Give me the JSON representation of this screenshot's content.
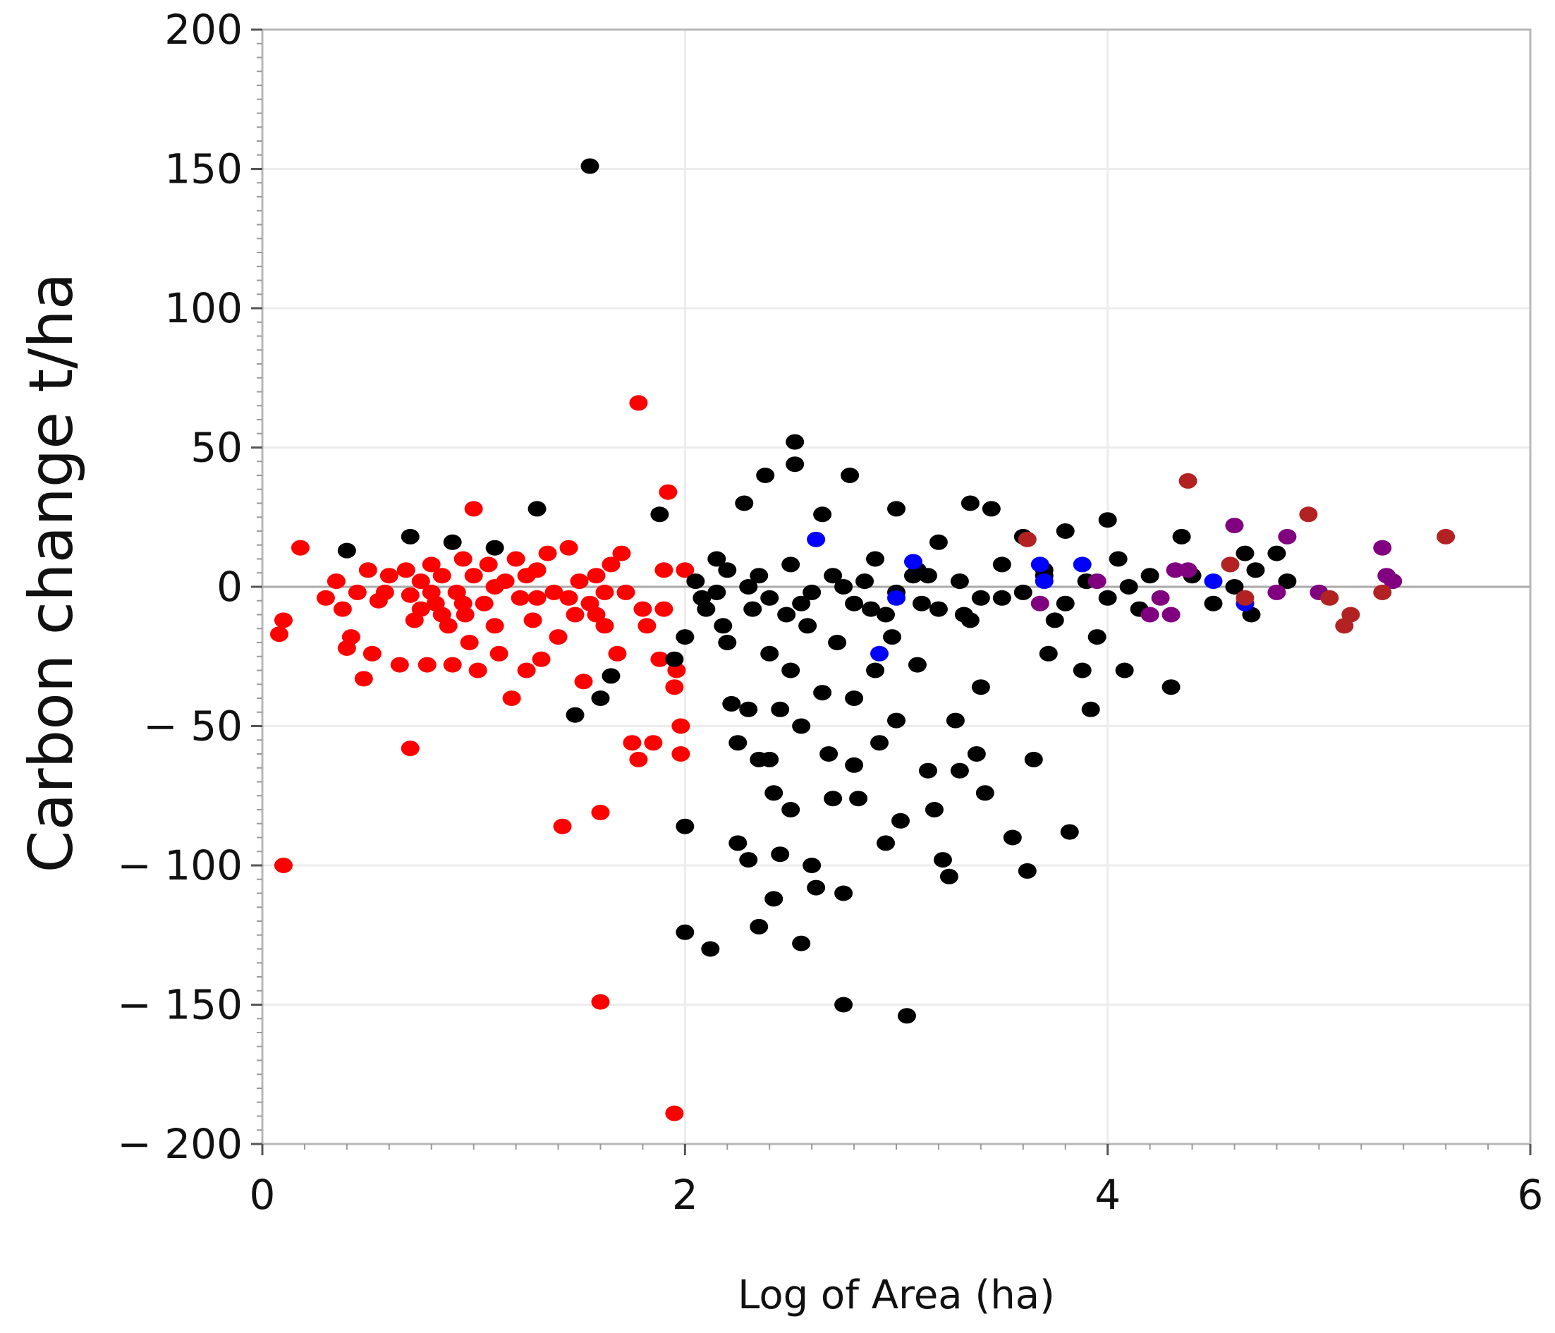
{
  "chart_data": {
    "type": "scatter",
    "title": "",
    "xlabel": "Log of Area (ha)",
    "ylabel": "Carbon change t/ha",
    "xlim": [
      0,
      6
    ],
    "ylim": [
      -200,
      200
    ],
    "grid": true,
    "x_ticks": [
      0,
      2,
      4,
      6
    ],
    "x_tick_labels": [
      "0",
      "2",
      "4",
      "6"
    ],
    "y_ticks": [
      200,
      150,
      100,
      50,
      0,
      -50,
      -100,
      -150,
      -200
    ],
    "y_tick_labels": [
      "200",
      "150",
      "100",
      "50",
      "0",
      "− 50",
      "− 100",
      "− 150",
      "− 200"
    ],
    "reference_line_y": 0,
    "series": [
      {
        "color": "#ff0000",
        "points": [
          [
            0.1,
            -100
          ],
          [
            0.08,
            -17
          ],
          [
            0.1,
            -12
          ],
          [
            0.18,
            14
          ],
          [
            0.3,
            -4
          ],
          [
            0.35,
            2
          ],
          [
            0.38,
            -8
          ],
          [
            0.4,
            -22
          ],
          [
            0.42,
            -18
          ],
          [
            0.45,
            -2
          ],
          [
            0.48,
            -33
          ],
          [
            0.5,
            6
          ],
          [
            0.52,
            -24
          ],
          [
            0.55,
            -5
          ],
          [
            0.58,
            -2
          ],
          [
            0.6,
            4
          ],
          [
            0.65,
            -28
          ],
          [
            0.68,
            6
          ],
          [
            0.7,
            -58
          ],
          [
            0.7,
            -3
          ],
          [
            0.72,
            -12
          ],
          [
            0.75,
            2
          ],
          [
            0.78,
            -28
          ],
          [
            0.8,
            8
          ],
          [
            0.82,
            -6
          ],
          [
            0.85,
            4
          ],
          [
            0.88,
            -14
          ],
          [
            0.9,
            -28
          ],
          [
            0.92,
            -2
          ],
          [
            0.95,
            10
          ],
          [
            0.96,
            -10
          ],
          [
            0.98,
            -20
          ],
          [
            1.0,
            28
          ],
          [
            1.0,
            4
          ],
          [
            1.02,
            -30
          ],
          [
            1.05,
            -6
          ],
          [
            1.07,
            8
          ],
          [
            1.1,
            -14
          ],
          [
            1.12,
            -24
          ],
          [
            1.15,
            2
          ],
          [
            1.18,
            -40
          ],
          [
            1.2,
            10
          ],
          [
            1.22,
            -4
          ],
          [
            1.25,
            -30
          ],
          [
            1.28,
            -12
          ],
          [
            1.3,
            6
          ],
          [
            1.32,
            -26
          ],
          [
            1.35,
            12
          ],
          [
            1.38,
            -2
          ],
          [
            1.4,
            -18
          ],
          [
            1.42,
            -86
          ],
          [
            1.45,
            14
          ],
          [
            1.48,
            -10
          ],
          [
            1.5,
            2
          ],
          [
            1.52,
            -34
          ],
          [
            1.55,
            -6
          ],
          [
            1.58,
            4
          ],
          [
            1.6,
            -81
          ],
          [
            1.6,
            -149
          ],
          [
            1.62,
            -14
          ],
          [
            1.65,
            8
          ],
          [
            1.68,
            -24
          ],
          [
            1.7,
            12
          ],
          [
            1.72,
            -2
          ],
          [
            1.75,
            -56
          ],
          [
            1.78,
            -62
          ],
          [
            1.78,
            66
          ],
          [
            1.8,
            -8
          ],
          [
            1.82,
            -14
          ],
          [
            1.85,
            -56
          ],
          [
            1.88,
            -26
          ],
          [
            1.9,
            6
          ],
          [
            1.9,
            -8
          ],
          [
            1.92,
            34
          ],
          [
            1.95,
            -36
          ],
          [
            1.95,
            -189
          ],
          [
            1.96,
            -30
          ],
          [
            1.98,
            -50
          ],
          [
            1.98,
            -60
          ],
          [
            2.0,
            6
          ],
          [
            1.62,
            -2
          ],
          [
            1.58,
            -10
          ],
          [
            1.3,
            -4
          ],
          [
            1.1,
            0
          ],
          [
            0.95,
            -6
          ],
          [
            0.85,
            -10
          ],
          [
            0.8,
            -2
          ],
          [
            0.75,
            -8
          ],
          [
            1.45,
            -4
          ],
          [
            1.25,
            4
          ]
        ]
      },
      {
        "color": "#000000",
        "points": [
          [
            0.4,
            13
          ],
          [
            0.7,
            18
          ],
          [
            0.9,
            16
          ],
          [
            1.1,
            14
          ],
          [
            1.3,
            28
          ],
          [
            1.48,
            -46
          ],
          [
            1.55,
            151
          ],
          [
            1.6,
            -40
          ],
          [
            1.65,
            -32
          ],
          [
            1.88,
            26
          ],
          [
            1.95,
            -26
          ],
          [
            2.0,
            -18
          ],
          [
            2.0,
            -86
          ],
          [
            2.0,
            -124
          ],
          [
            2.05,
            2
          ],
          [
            2.08,
            -4
          ],
          [
            2.1,
            -8
          ],
          [
            2.12,
            -130
          ],
          [
            2.15,
            10
          ],
          [
            2.18,
            -14
          ],
          [
            2.2,
            -20
          ],
          [
            2.22,
            -42
          ],
          [
            2.25,
            -56
          ],
          [
            2.25,
            -92
          ],
          [
            2.28,
            30
          ],
          [
            2.3,
            -44
          ],
          [
            2.3,
            -98
          ],
          [
            2.32,
            -8
          ],
          [
            2.35,
            -62
          ],
          [
            2.35,
            -122
          ],
          [
            2.38,
            40
          ],
          [
            2.4,
            -24
          ],
          [
            2.4,
            -62
          ],
          [
            2.42,
            -74
          ],
          [
            2.42,
            -112
          ],
          [
            2.45,
            -44
          ],
          [
            2.45,
            -96
          ],
          [
            2.48,
            -10
          ],
          [
            2.5,
            -30
          ],
          [
            2.5,
            -80
          ],
          [
            2.52,
            44
          ],
          [
            2.52,
            52
          ],
          [
            2.55,
            -50
          ],
          [
            2.55,
            -128
          ],
          [
            2.58,
            -14
          ],
          [
            2.6,
            -100
          ],
          [
            2.62,
            -108
          ],
          [
            2.65,
            26
          ],
          [
            2.65,
            -38
          ],
          [
            2.68,
            -60
          ],
          [
            2.7,
            -76
          ],
          [
            2.72,
            -20
          ],
          [
            2.75,
            -150
          ],
          [
            2.75,
            -110
          ],
          [
            2.78,
            40
          ],
          [
            2.8,
            -40
          ],
          [
            2.8,
            -64
          ],
          [
            2.82,
            -76
          ],
          [
            2.85,
            2
          ],
          [
            2.88,
            -8
          ],
          [
            2.9,
            -30
          ],
          [
            2.92,
            -56
          ],
          [
            2.95,
            -92
          ],
          [
            2.98,
            -18
          ],
          [
            3.0,
            28
          ],
          [
            3.0,
            -48
          ],
          [
            3.02,
            -84
          ],
          [
            3.05,
            -154
          ],
          [
            3.08,
            4
          ],
          [
            3.1,
            -28
          ],
          [
            3.12,
            -6
          ],
          [
            3.15,
            -66
          ],
          [
            3.18,
            -80
          ],
          [
            3.2,
            16
          ],
          [
            3.22,
            -98
          ],
          [
            3.25,
            -104
          ],
          [
            3.28,
            -48
          ],
          [
            3.3,
            -66
          ],
          [
            3.32,
            -10
          ],
          [
            3.35,
            30
          ],
          [
            3.38,
            -60
          ],
          [
            3.4,
            -36
          ],
          [
            3.42,
            -74
          ],
          [
            3.45,
            28
          ],
          [
            3.5,
            -4
          ],
          [
            3.55,
            -90
          ],
          [
            3.6,
            18
          ],
          [
            3.62,
            -102
          ],
          [
            3.65,
            -62
          ],
          [
            3.7,
            6
          ],
          [
            3.72,
            -24
          ],
          [
            3.75,
            -12
          ],
          [
            3.8,
            20
          ],
          [
            3.82,
            -88
          ],
          [
            3.88,
            -30
          ],
          [
            3.9,
            2
          ],
          [
            3.92,
            -44
          ],
          [
            3.95,
            -18
          ],
          [
            4.0,
            24
          ],
          [
            4.05,
            10
          ],
          [
            4.08,
            -30
          ],
          [
            4.1,
            0
          ],
          [
            4.15,
            -8
          ],
          [
            4.2,
            4
          ],
          [
            4.3,
            -36
          ],
          [
            4.35,
            18
          ],
          [
            4.4,
            4
          ],
          [
            4.5,
            -6
          ],
          [
            4.6,
            0
          ],
          [
            4.65,
            12
          ],
          [
            4.68,
            -10
          ],
          [
            4.7,
            6
          ],
          [
            4.8,
            12
          ],
          [
            4.85,
            2
          ],
          [
            2.2,
            6
          ],
          [
            2.3,
            0
          ],
          [
            2.4,
            -4
          ],
          [
            2.5,
            8
          ],
          [
            2.6,
            -2
          ],
          [
            2.7,
            4
          ],
          [
            2.8,
            -6
          ],
          [
            2.9,
            10
          ],
          [
            3.0,
            -2
          ],
          [
            3.1,
            6
          ],
          [
            3.2,
            -8
          ],
          [
            3.3,
            2
          ],
          [
            3.4,
            -4
          ],
          [
            3.5,
            8
          ],
          [
            3.6,
            -2
          ],
          [
            3.7,
            4
          ],
          [
            3.8,
            -6
          ],
          [
            3.9,
            2
          ],
          [
            4.0,
            -4
          ],
          [
            2.15,
            -2
          ],
          [
            2.35,
            4
          ],
          [
            2.55,
            -6
          ],
          [
            2.75,
            0
          ],
          [
            2.95,
            -10
          ],
          [
            3.15,
            4
          ],
          [
            3.35,
            -12
          ]
        ]
      },
      {
        "color": "#0000ff",
        "points": [
          [
            2.62,
            17
          ],
          [
            2.92,
            -24
          ],
          [
            3.0,
            -4
          ],
          [
            3.08,
            9
          ],
          [
            3.68,
            8
          ],
          [
            3.7,
            2
          ],
          [
            3.88,
            8
          ],
          [
            4.5,
            2
          ],
          [
            4.65,
            -6
          ]
        ]
      },
      {
        "color": "#800080",
        "points": [
          [
            3.68,
            -6
          ],
          [
            3.95,
            2
          ],
          [
            4.2,
            -10
          ],
          [
            4.25,
            -4
          ],
          [
            4.3,
            -10
          ],
          [
            4.32,
            6
          ],
          [
            4.38,
            6
          ],
          [
            4.6,
            22
          ],
          [
            4.8,
            -2
          ],
          [
            4.85,
            18
          ],
          [
            5.0,
            -2
          ],
          [
            5.3,
            14
          ],
          [
            5.32,
            4
          ],
          [
            5.35,
            2
          ]
        ]
      },
      {
        "color": "#b22222",
        "points": [
          [
            3.62,
            17
          ],
          [
            4.38,
            38
          ],
          [
            4.58,
            8
          ],
          [
            4.65,
            -4
          ],
          [
            4.95,
            26
          ],
          [
            5.05,
            -4
          ],
          [
            5.12,
            -14
          ],
          [
            5.15,
            -10
          ],
          [
            5.3,
            -2
          ],
          [
            5.6,
            18
          ]
        ]
      }
    ]
  }
}
